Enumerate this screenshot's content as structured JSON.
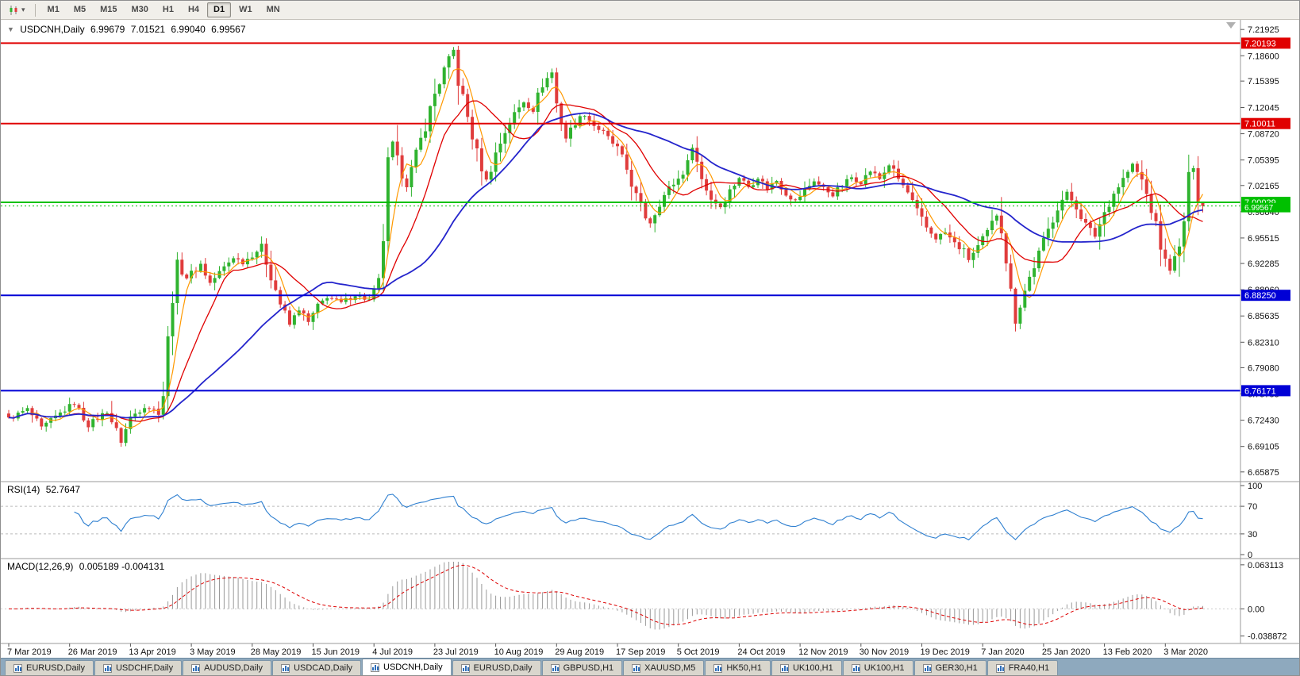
{
  "toolbar": {
    "caret": "▾",
    "timeframes": [
      "M1",
      "M5",
      "M15",
      "M30",
      "H1",
      "H4",
      "D1",
      "W1",
      "MN"
    ],
    "active_timeframe": "D1"
  },
  "chart": {
    "collapse_arrow": "▼",
    "title": "USDCNH,Daily",
    "ohlc": {
      "open": "6.99679",
      "high": "7.01521",
      "low": "6.99040",
      "close": "6.99567"
    },
    "price_axis": {
      "ticks": [
        "7.21925",
        "7.18600",
        "7.15395",
        "7.12045",
        "7.08720",
        "7.05395",
        "7.02165",
        "6.98840",
        "6.95515",
        "6.92285",
        "6.88960",
        "6.85635",
        "6.82310",
        "6.79080",
        "6.75755",
        "6.72430",
        "6.69105",
        "6.65875"
      ]
    },
    "lines": [
      {
        "price": "7.20193",
        "color": "#E00000",
        "width": 2
      },
      {
        "price": "7.10011",
        "color": "#E00000",
        "width": 2
      },
      {
        "price": "7.00029",
        "color": "#00C000",
        "width": 2
      },
      {
        "price": "6.99567",
        "color": "#00C000",
        "width": 1,
        "style": "dotted",
        "small": true
      },
      {
        "price": "6.88250",
        "color": "#0000D6",
        "width": 2
      },
      {
        "price": "6.76171",
        "color": "#0000D6",
        "width": 2
      }
    ]
  },
  "rsi": {
    "label": "RSI(14)",
    "value": "52.7647",
    "ticks": [
      "100",
      "70",
      "30",
      "0"
    ],
    "levels": [
      70,
      30
    ]
  },
  "macd": {
    "label": "MACD(12,26,9)",
    "values": "0.005189 -0.004131",
    "ticks": [
      "0.063113",
      "0.00",
      "-0.038872"
    ]
  },
  "date_axis": {
    "labels": [
      "7 Mar 2019",
      "26 Mar 2019",
      "13 Apr 2019",
      "3 May 2019",
      "28 May 2019",
      "15 Jun 2019",
      "4 Jul 2019",
      "23 Jul 2019",
      "10 Aug 2019",
      "29 Aug 2019",
      "17 Sep 2019",
      "5 Oct 2019",
      "24 Oct 2019",
      "12 Nov 2019",
      "30 Nov 2019",
      "19 Dec 2019",
      "7 Jan 2020",
      "25 Jan 2020",
      "13 Feb 2020",
      "3 Mar 2020"
    ]
  },
  "tabs": {
    "items": [
      "EURUSD,Daily",
      "USDCHF,Daily",
      "AUDUSD,Daily",
      "USDCAD,Daily",
      "USDCNH,Daily",
      "EURUSD,Daily",
      "GBPUSD,H1",
      "XAUUSD,M5",
      "HK50,H1",
      "UK100,H1",
      "UK100,H1",
      "GER30,H1",
      "FRA40,H1"
    ],
    "active_index": 4
  },
  "chart_data": {
    "type": "candlestick",
    "symbol": "USDCNH",
    "period": "Daily",
    "num_candles": 256,
    "price_ylim": [
      6.6465,
      7.2315
    ],
    "macd_ylim": [
      -0.045,
      0.0675
    ],
    "clamp": [
      6.664,
      7.1985
    ],
    "last_close": 6.99567,
    "date_label_stride": 13,
    "waypoints": [
      [
        0,
        6.726
      ],
      [
        4,
        6.738
      ],
      [
        7,
        6.714
      ],
      [
        11,
        6.733
      ],
      [
        14,
        6.746
      ],
      [
        17,
        6.718
      ],
      [
        21,
        6.736
      ],
      [
        24,
        6.697
      ],
      [
        26,
        6.728
      ],
      [
        29,
        6.742
      ],
      [
        32,
        6.736
      ],
      [
        33,
        6.758
      ],
      [
        34,
        6.825
      ],
      [
        35,
        6.883
      ],
      [
        36,
        6.921
      ],
      [
        38,
        6.905
      ],
      [
        41,
        6.922
      ],
      [
        43,
        6.898
      ],
      [
        46,
        6.918
      ],
      [
        48,
        6.931
      ],
      [
        50,
        6.924
      ],
      [
        52,
        6.934
      ],
      [
        54,
        6.944
      ],
      [
        56,
        6.908
      ],
      [
        58,
        6.872
      ],
      [
        60,
        6.845
      ],
      [
        62,
        6.865
      ],
      [
        64,
        6.848
      ],
      [
        66,
        6.868
      ],
      [
        68,
        6.881
      ],
      [
        71,
        6.873
      ],
      [
        74,
        6.883
      ],
      [
        77,
        6.876
      ],
      [
        79,
        6.896
      ],
      [
        80,
        6.955
      ],
      [
        81,
        7.048
      ],
      [
        82,
        7.075
      ],
      [
        83,
        7.052
      ],
      [
        85,
        7.022
      ],
      [
        87,
        7.06
      ],
      [
        89,
        7.098
      ],
      [
        91,
        7.138
      ],
      [
        93,
        7.168
      ],
      [
        95,
        7.192
      ],
      [
        96,
        7.155
      ],
      [
        98,
        7.108
      ],
      [
        100,
        7.062
      ],
      [
        102,
        7.028
      ],
      [
        104,
        7.062
      ],
      [
        106,
        7.09
      ],
      [
        108,
        7.112
      ],
      [
        110,
        7.128
      ],
      [
        112,
        7.118
      ],
      [
        114,
        7.15
      ],
      [
        116,
        7.165
      ],
      [
        117,
        7.125
      ],
      [
        119,
        7.082
      ],
      [
        121,
        7.102
      ],
      [
        123,
        7.112
      ],
      [
        125,
        7.098
      ],
      [
        127,
        7.088
      ],
      [
        129,
        7.075
      ],
      [
        130,
        7.068
      ],
      [
        132,
        7.042
      ],
      [
        134,
        7.008
      ],
      [
        136,
        6.982
      ],
      [
        137,
        6.975
      ],
      [
        139,
        7.0
      ],
      [
        141,
        7.018
      ],
      [
        143,
        7.03
      ],
      [
        145,
        7.048
      ],
      [
        146,
        7.072
      ],
      [
        148,
        7.03
      ],
      [
        150,
        7.005
      ],
      [
        152,
        6.995
      ],
      [
        154,
        7.015
      ],
      [
        156,
        7.032
      ],
      [
        158,
        7.02
      ],
      [
        160,
        7.032
      ],
      [
        162,
        7.018
      ],
      [
        164,
        7.028
      ],
      [
        166,
        7.012
      ],
      [
        168,
        7.002
      ],
      [
        170,
        7.015
      ],
      [
        172,
        7.028
      ],
      [
        174,
        7.018
      ],
      [
        176,
        7.01
      ],
      [
        178,
        7.022
      ],
      [
        180,
        7.032
      ],
      [
        182,
        7.026
      ],
      [
        184,
        7.04
      ],
      [
        186,
        7.03
      ],
      [
        188,
        7.048
      ],
      [
        190,
        7.03
      ],
      [
        192,
        7.012
      ],
      [
        194,
        6.988
      ],
      [
        196,
        6.968
      ],
      [
        198,
        6.955
      ],
      [
        200,
        6.962
      ],
      [
        202,
        6.948
      ],
      [
        204,
        6.938
      ],
      [
        205,
        6.928
      ],
      [
        207,
        6.944
      ],
      [
        209,
        6.962
      ],
      [
        211,
        6.985
      ],
      [
        212,
        6.97
      ],
      [
        213,
        6.93
      ],
      [
        214,
        6.885
      ],
      [
        215,
        6.85
      ],
      [
        216,
        6.872
      ],
      [
        218,
        6.905
      ],
      [
        220,
        6.935
      ],
      [
        222,
        6.965
      ],
      [
        224,
        6.995
      ],
      [
        226,
        7.012
      ],
      [
        228,
        6.995
      ],
      [
        230,
        6.972
      ],
      [
        232,
        6.958
      ],
      [
        234,
        6.988
      ],
      [
        236,
        7.012
      ],
      [
        238,
        7.03
      ],
      [
        240,
        7.048
      ],
      [
        242,
        7.028
      ],
      [
        244,
        6.992
      ],
      [
        246,
        6.945
      ],
      [
        247,
        6.925
      ],
      [
        248,
        6.916
      ],
      [
        250,
        6.94
      ],
      [
        251,
        6.978
      ],
      [
        252,
        7.028
      ],
      [
        253,
        7.048
      ],
      [
        254,
        7.008
      ],
      [
        255,
        6.996
      ]
    ],
    "moving_averages": [
      {
        "period": 5,
        "color": "#FF9900",
        "width": 1.2
      },
      {
        "period": 13,
        "color": "#E00000",
        "width": 1.3
      },
      {
        "period": 34,
        "color": "#2424CC",
        "width": 1.8
      }
    ],
    "colors": {
      "bull": "#2FB32F",
      "bear": "#E03C3C",
      "rsi": "#2E7FD0",
      "macd_hist": "#9A9A9A",
      "macd_signal": "#DD0000"
    }
  }
}
